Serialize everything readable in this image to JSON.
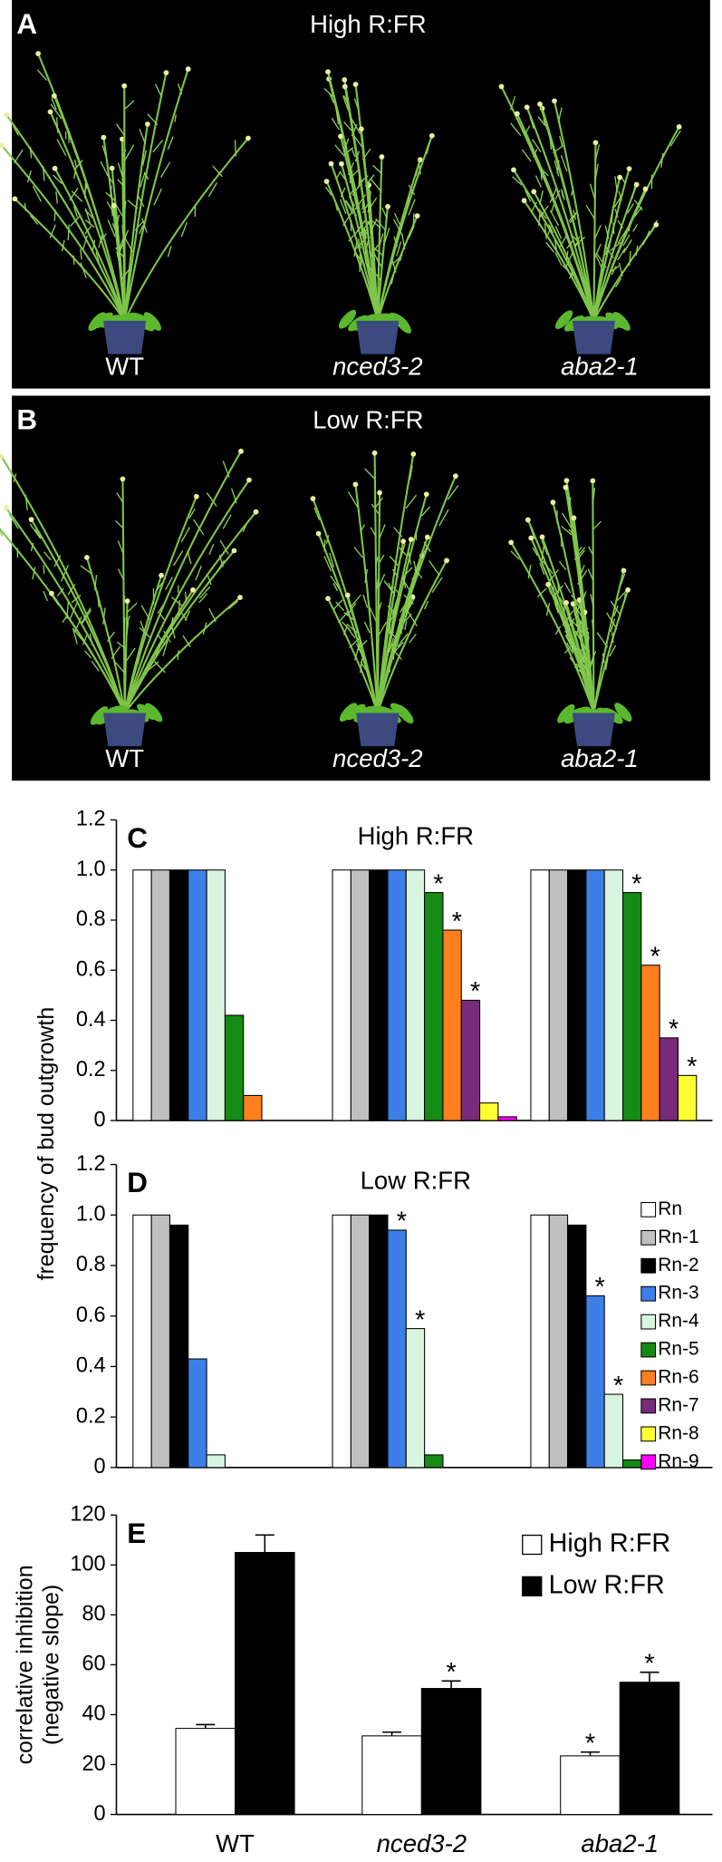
{
  "photos": [
    {
      "panel": "A",
      "title": "High R:FR",
      "labels": [
        "WT",
        "nced3-2",
        "aba2-1"
      ]
    },
    {
      "panel": "B",
      "title": "Low R:FR",
      "labels": [
        "WT",
        "nced3-2",
        "aba2-1"
      ]
    }
  ],
  "chart_data": [
    {
      "type": "bar",
      "panel": "C",
      "title": "High R:FR",
      "ylabel": "frequency of bud outgrowth",
      "categories": [
        null,
        null,
        null
      ],
      "ylim": [
        0,
        1.2
      ],
      "yticks": [
        0,
        0.2,
        0.4,
        0.6,
        0.8,
        {
          "value": 1,
          "label": "1.0"
        },
        1.2
      ],
      "series": [
        {
          "color": "#ffffff",
          "values": [
            1,
            1,
            1
          ]
        },
        {
          "color": "#c0c0c0",
          "values": [
            1,
            1,
            1
          ]
        },
        {
          "color": "#000000",
          "values": [
            1,
            1,
            1
          ]
        },
        {
          "color": "#3d7fe6",
          "values": [
            1,
            1,
            1
          ]
        },
        {
          "color": "#d8f5df",
          "values": [
            1,
            1,
            1
          ]
        },
        {
          "color": "#158a15",
          "values": [
            0.42,
            0.91,
            0.91
          ]
        },
        {
          "color": "#ff7f1e",
          "values": [
            0.1,
            0.76,
            0.62
          ]
        },
        {
          "color": "#7a2a7a",
          "values": [
            0,
            0.48,
            0.33
          ]
        },
        {
          "color": "#ffff33",
          "values": [
            0,
            0.07,
            0.18
          ]
        },
        {
          "color": "#ff00ff",
          "values": [
            0,
            0.015,
            0
          ]
        }
      ],
      "annotations": [
        {
          "text": "*",
          "series": 5,
          "category": 1
        },
        {
          "text": "*",
          "series": 6,
          "category": 1
        },
        {
          "text": "*",
          "series": 7,
          "category": 1
        },
        {
          "text": "*",
          "series": 5,
          "category": 2
        },
        {
          "text": "*",
          "series": 6,
          "category": 2
        },
        {
          "text": "*",
          "series": 7,
          "category": 2
        },
        {
          "text": "*",
          "series": 8,
          "category": 2
        }
      ]
    },
    {
      "type": "bar",
      "panel": "D",
      "title": "Low R:FR",
      "categories": [
        null,
        null,
        null
      ],
      "ylim": [
        0,
        1.2
      ],
      "yticks": [
        0,
        0.2,
        0.4,
        0.6,
        0.8,
        {
          "value": 1,
          "label": "1.0"
        },
        1.2
      ],
      "series": [
        {
          "name": "Rn",
          "color": "#ffffff",
          "values": [
            1,
            1,
            1
          ]
        },
        {
          "name": "Rn-1",
          "color": "#c0c0c0",
          "values": [
            1,
            1,
            1
          ]
        },
        {
          "name": "Rn-2",
          "color": "#000000",
          "values": [
            0.96,
            1,
            0.96
          ]
        },
        {
          "name": "Rn-3",
          "color": "#3d7fe6",
          "values": [
            0.43,
            0.94,
            0.68
          ]
        },
        {
          "name": "Rn-4",
          "color": "#d8f5df",
          "values": [
            0.05,
            0.55,
            0.29
          ]
        },
        {
          "name": "Rn-5",
          "color": "#158a15",
          "values": [
            0,
            0.05,
            0.03
          ]
        },
        {
          "name": "Rn-6",
          "color": "#ff7f1e",
          "values": [
            0,
            0,
            0
          ]
        },
        {
          "name": "Rn-7",
          "color": "#7a2a7a",
          "values": [
            0,
            0,
            0
          ]
        },
        {
          "name": "Rn-8",
          "color": "#ffff33",
          "values": [
            0,
            0,
            0
          ]
        },
        {
          "name": "Rn-9",
          "color": "#ff00ff",
          "values": [
            0,
            0,
            0
          ]
        }
      ],
      "annotations": [
        {
          "text": "*",
          "series": 3,
          "category": 1
        },
        {
          "text": "*",
          "series": 4,
          "category": 1
        },
        {
          "text": "*",
          "series": 3,
          "category": 2
        },
        {
          "text": "*",
          "series": 4,
          "category": 2
        }
      ]
    },
    {
      "type": "bar",
      "panel": "E",
      "ylabel": [
        "correlative inhibition",
        "(negative slope)"
      ],
      "categories": [
        "WT",
        "nced3-2",
        "aba2-1"
      ],
      "ylim": [
        0,
        120
      ],
      "yticks": [
        0,
        20,
        40,
        60,
        80,
        100,
        120
      ],
      "series": [
        {
          "name": "High R:FR",
          "color": "#ffffff",
          "values": [
            34.5,
            31.5,
            23.5
          ],
          "errors": [
            1.5,
            1.5,
            1.5
          ]
        },
        {
          "name": "Low R:FR",
          "color": "#000000",
          "values": [
            105,
            50.5,
            53
          ],
          "errors": [
            7,
            3,
            4
          ]
        }
      ],
      "annotations": [
        {
          "text": "*",
          "series": 1,
          "category": 1
        },
        {
          "text": "*",
          "series": 0,
          "category": 2
        },
        {
          "text": "*",
          "series": 1,
          "category": 2
        }
      ]
    }
  ]
}
